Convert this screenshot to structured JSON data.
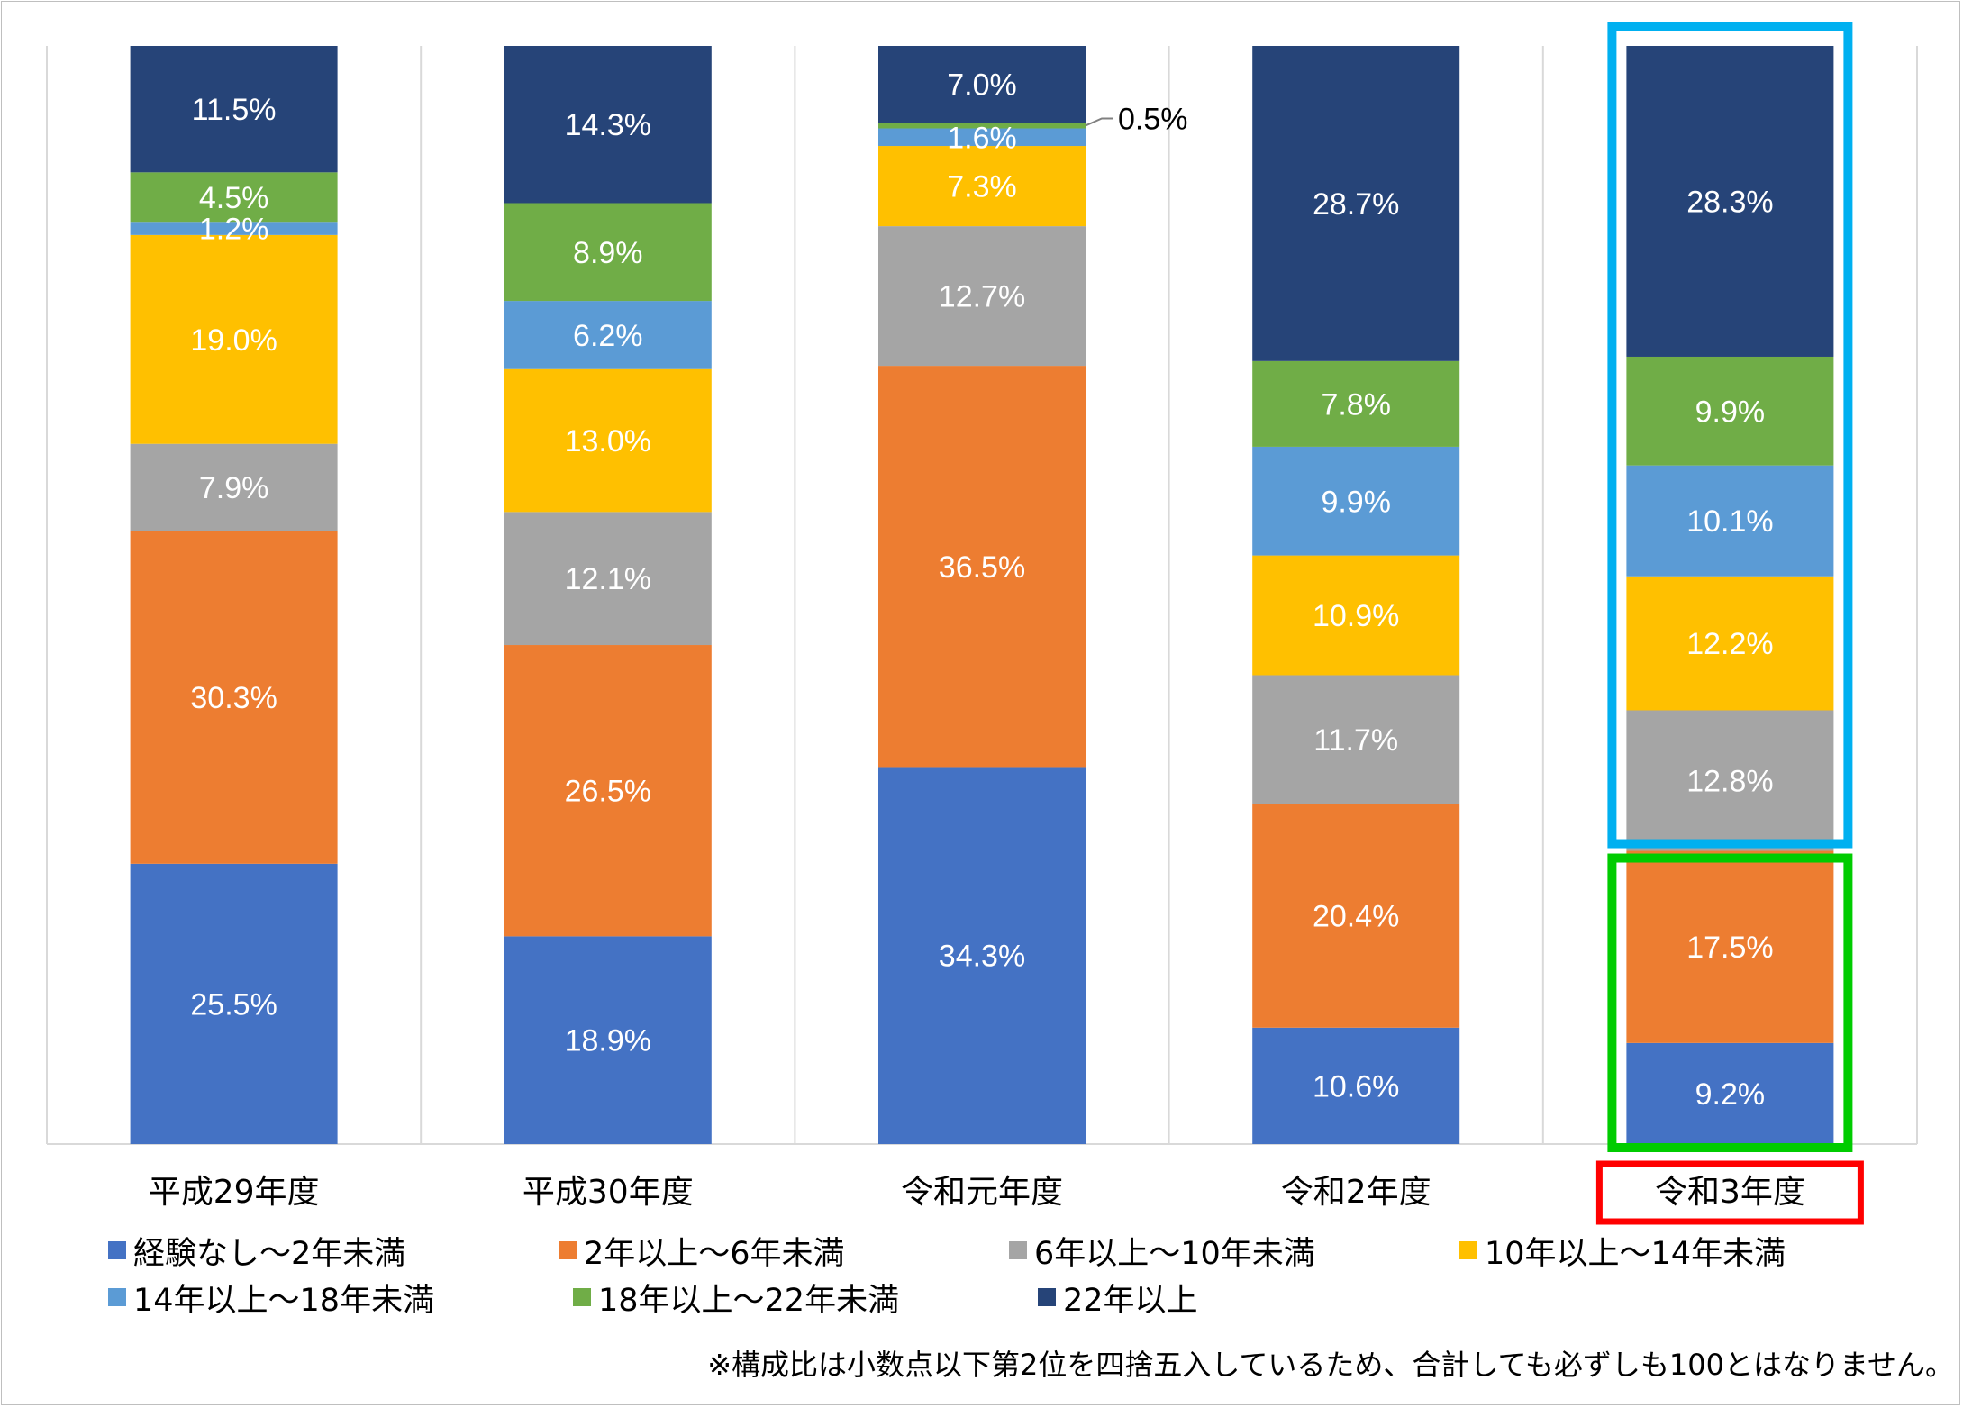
{
  "chart_data": {
    "type": "bar",
    "stacked": true,
    "categories": [
      "平成29年度",
      "平成30年度",
      "令和元年度",
      "令和2年度",
      "令和3年度"
    ],
    "series": [
      {
        "name": "経験なし～2年未満",
        "color": "#4472C4",
        "values": [
          25.5,
          18.9,
          34.3,
          10.6,
          9.2
        ]
      },
      {
        "name": "2年以上～6年未満",
        "color": "#ED7D31",
        "values": [
          30.3,
          26.5,
          36.5,
          20.4,
          17.5
        ]
      },
      {
        "name": "6年以上～10年未満",
        "color": "#A5A5A5",
        "values": [
          7.9,
          12.1,
          12.7,
          11.7,
          12.8
        ]
      },
      {
        "name": "10年以上～14年未満",
        "color": "#FFC000",
        "values": [
          19.0,
          13.0,
          7.3,
          10.9,
          12.2
        ]
      },
      {
        "name": "14年以上～18年未満",
        "color": "#5B9BD5",
        "values": [
          1.2,
          6.2,
          1.6,
          9.9,
          10.1
        ]
      },
      {
        "name": "18年以上～22年未満",
        "color": "#70AD47",
        "values": [
          4.5,
          8.9,
          0.5,
          7.8,
          9.9
        ]
      },
      {
        "name": "22年以上",
        "color": "#264478",
        "values": [
          11.5,
          14.3,
          7.0,
          28.7,
          28.3
        ]
      }
    ],
    "data_labels": [
      [
        "25.5%",
        "18.9%",
        "34.3%",
        "10.6%",
        "9.2%"
      ],
      [
        "30.3%",
        "26.5%",
        "36.5%",
        "20.4%",
        "17.5%"
      ],
      [
        "7.9%",
        "12.1%",
        "12.7%",
        "11.7%",
        "12.8%"
      ],
      [
        "19.0%",
        "13.0%",
        "7.3%",
        "10.9%",
        "12.2%"
      ],
      [
        "1.2%",
        "6.2%",
        "1.6%",
        "9.9%",
        "10.1%"
      ],
      [
        "4.5%",
        "8.9%",
        "0.5%",
        "7.8%",
        "9.9%"
      ],
      [
        "11.5%",
        "14.3%",
        "7.0%",
        "28.7%",
        "28.3%"
      ]
    ],
    "ylim": [
      0,
      100
    ],
    "grid": "vertical",
    "legend_position": "bottom",
    "highlight_colors": {
      "upper_group": "#00B0F0",
      "lower_group": "#00CC00",
      "category": "#FF0000"
    },
    "note": "※構成比は小数点以下第2位を四捨五入しているため、合計しても必ずしも100とはなりません。"
  }
}
